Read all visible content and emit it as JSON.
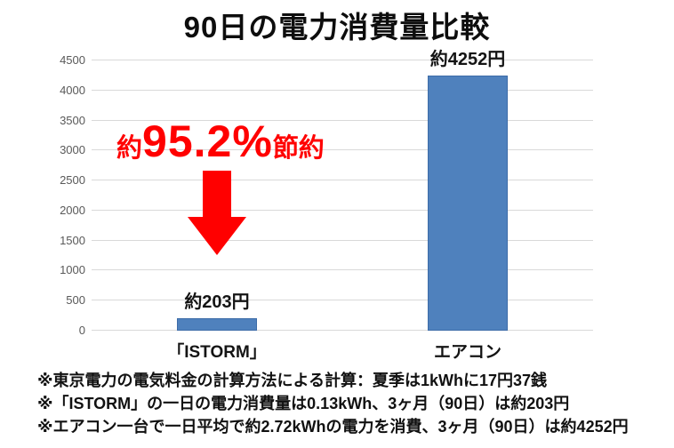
{
  "chart_data": {
    "type": "bar",
    "title": "90日の電力消費量比較",
    "categories": [
      "「ISTORM」",
      "エアコン"
    ],
    "values": [
      203,
      4252
    ],
    "value_labels": [
      "約203円",
      "約4252円"
    ],
    "ylim": [
      0,
      4500
    ],
    "ytick_step": 500,
    "yticks": [
      0,
      500,
      1000,
      1500,
      2000,
      2500,
      3000,
      3500,
      4000,
      4500
    ],
    "grid": true,
    "legend": false,
    "bar_color": "#4F81BD",
    "gridline_color": "#D9D9D9",
    "annotation": {
      "prefix": "約",
      "value": "95.2%",
      "suffix": "節約",
      "color": "#FF0000",
      "arrow": "down"
    }
  },
  "notes": [
    "※東京電力の電気料金の計算方法による計算：夏季は1kWhに17円37銭",
    "※「ISTORM」の一日の電力消費量は0.13kWh、3ヶ月（90日）は約203円",
    "※エアコン一台で一日平均で約2.72kWhの電力を消費、3ヶ月（90日）は約4252円"
  ]
}
